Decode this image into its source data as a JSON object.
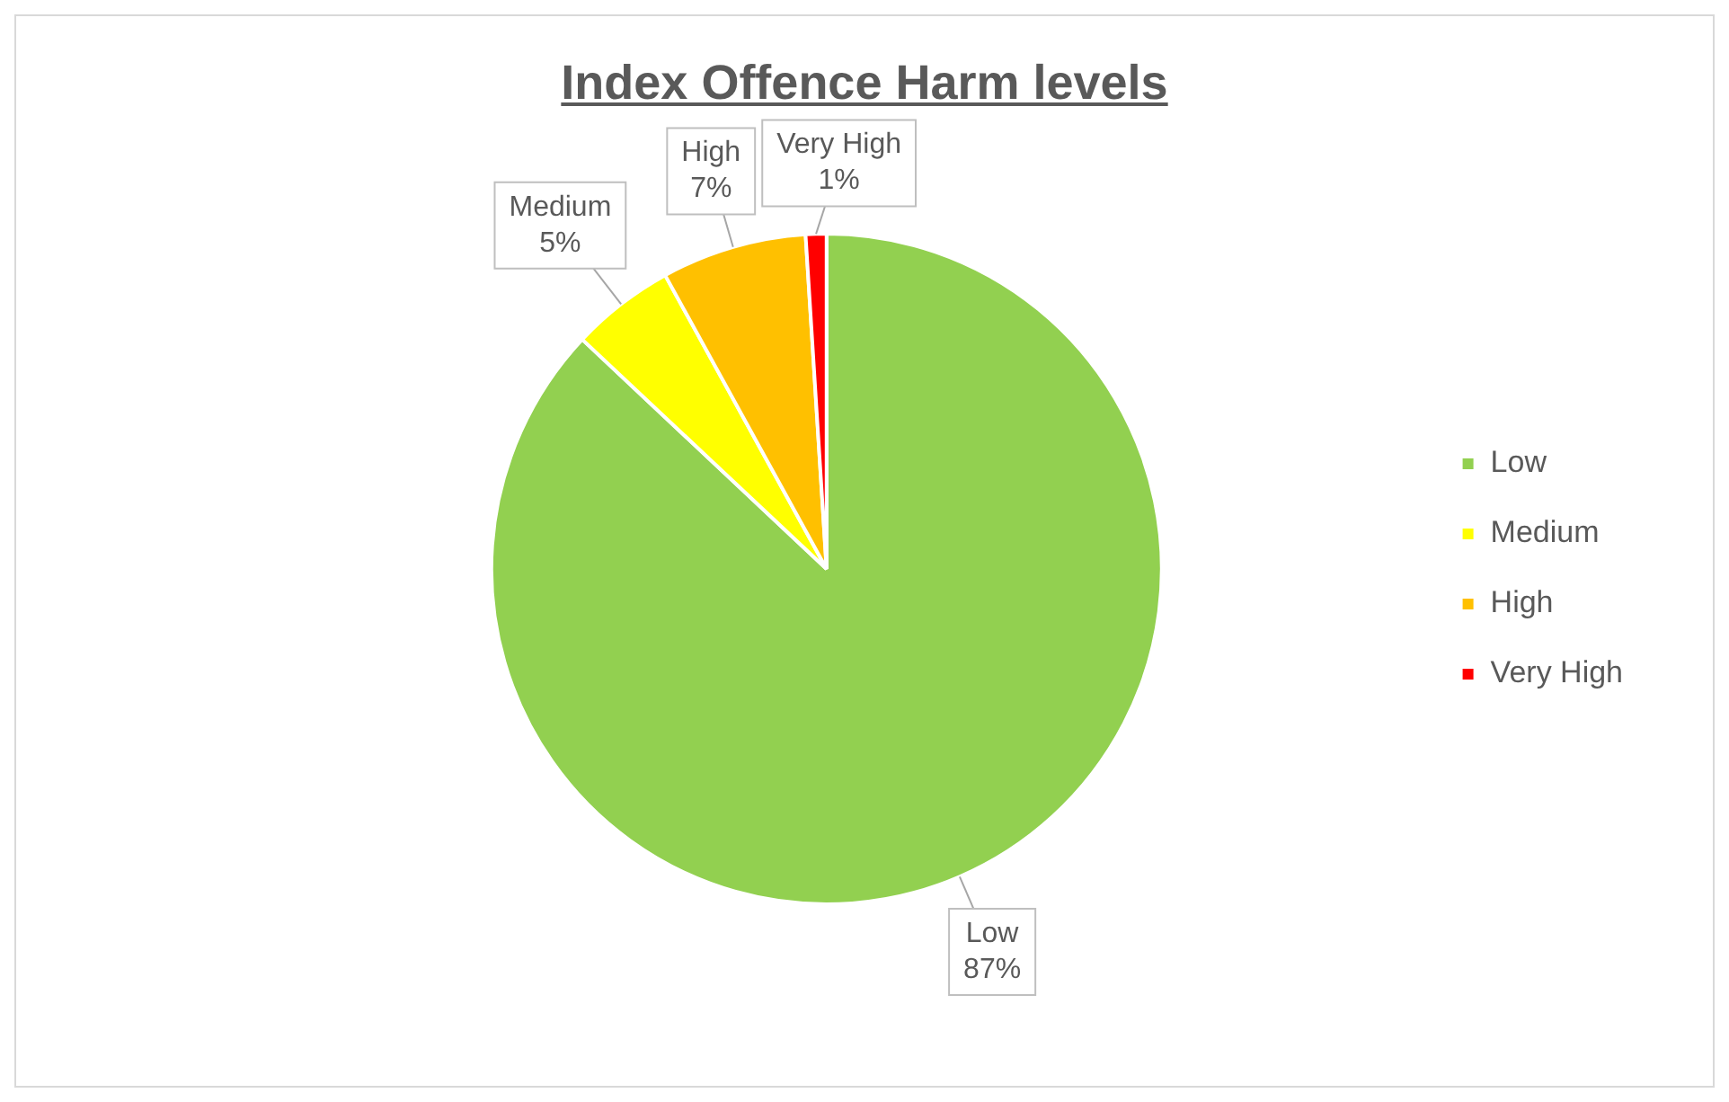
{
  "chart_data": {
    "type": "pie",
    "title": "Index Offence Harm levels",
    "categories": [
      "Low",
      "Medium",
      "High",
      "Very High"
    ],
    "values": [
      87,
      5,
      7,
      1
    ],
    "value_labels": [
      "87%",
      "5%",
      "7%",
      "1%"
    ],
    "colors": [
      "#92d050",
      "#ffff00",
      "#ffc000",
      "#ff0000"
    ],
    "legend": "right"
  }
}
